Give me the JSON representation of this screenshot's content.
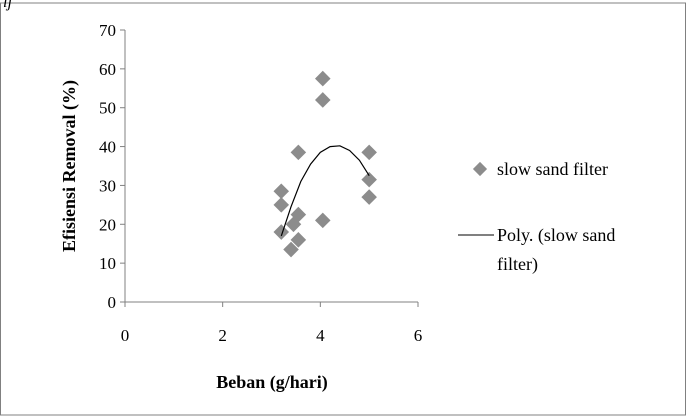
{
  "top_text": "ij",
  "chart_data": {
    "type": "scatter",
    "title": "",
    "xlabel": "Beban (g/hari)",
    "ylabel": "Efisiensi Removal (%)",
    "xlim": [
      0,
      6
    ],
    "ylim": [
      0,
      70
    ],
    "xticks": [
      "0",
      "2",
      "4",
      "6"
    ],
    "yticks": [
      "0",
      "10",
      "20",
      "30",
      "40",
      "50",
      "60",
      "70"
    ],
    "grid": false,
    "legend_position": "right",
    "series": [
      {
        "name": "slow sand filter",
        "marker": "diamond",
        "color": "#8c8c8c",
        "points": [
          [
            3.2,
            28.5
          ],
          [
            3.2,
            25.0
          ],
          [
            3.2,
            18.0
          ],
          [
            3.4,
            13.5
          ],
          [
            3.45,
            20.0
          ],
          [
            3.55,
            38.5
          ],
          [
            3.55,
            22.5
          ],
          [
            3.55,
            16.0
          ],
          [
            4.05,
            57.5
          ],
          [
            4.05,
            52.0
          ],
          [
            4.05,
            21.0
          ],
          [
            5.0,
            38.5
          ],
          [
            5.0,
            31.5
          ],
          [
            5.0,
            27.0
          ]
        ]
      }
    ],
    "trendline": {
      "name": "Poly. (slow sand filter)",
      "label_lines": [
        "Poly. (slow sand",
        "filter)"
      ],
      "color": "#000000",
      "points": [
        [
          3.2,
          17.0
        ],
        [
          3.4,
          24.5
        ],
        [
          3.6,
          31.0
        ],
        [
          3.8,
          35.5
        ],
        [
          4.0,
          38.5
        ],
        [
          4.2,
          40.0
        ],
        [
          4.4,
          40.2
        ],
        [
          4.6,
          39.0
        ],
        [
          4.8,
          36.5
        ],
        [
          5.0,
          32.5
        ]
      ]
    }
  }
}
